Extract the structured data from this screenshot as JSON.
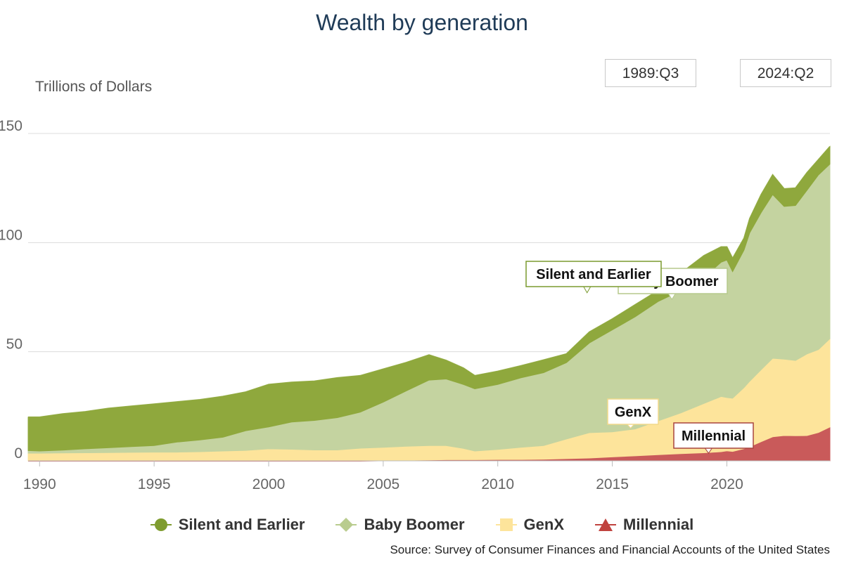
{
  "title": "Wealth by generation",
  "unit_label": "Trillions of Dollars",
  "range_selector": {
    "start": "1989:Q3",
    "end": "2024:Q2"
  },
  "source": "Source: Survey of Consumer Finances and Financial Accounts of the United States",
  "colors": {
    "silent": "#8fa83d",
    "boomer": "#c4d3a0",
    "genx": "#fde49b",
    "millennial": "#c95a5a",
    "silent_label_border": "#7a9a2e",
    "boomer_label_border": "#b6c98c",
    "genx_label_border": "#f2d98a",
    "millennial_label_border": "#a8453f"
  },
  "legend": [
    {
      "label": "Silent and Earlier",
      "icon": "circle-icon",
      "color": "#7f9c2f"
    },
    {
      "label": "Baby Boomer",
      "icon": "diamond-icon",
      "color": "#b9cc8e"
    },
    {
      "label": "GenX",
      "icon": "square-icon",
      "color": "#fde49b"
    },
    {
      "label": "Millennial",
      "icon": "triangle-icon",
      "color": "#c0433f"
    }
  ],
  "chart_data": {
    "type": "area",
    "stacked": true,
    "title": "Wealth by generation",
    "ylabel": "Trillions of Dollars",
    "xlim": [
      1989.5,
      2024.5
    ],
    "ylim": [
      0,
      155
    ],
    "y_ticks": [
      0,
      50,
      100,
      150
    ],
    "x_ticks": [
      1990,
      1995,
      2000,
      2005,
      2010,
      2015,
      2020
    ],
    "grid": "horizontal",
    "legend_position": "bottom",
    "x": [
      1989.5,
      1990,
      1991,
      1992,
      1993,
      1994,
      1995,
      1996,
      1997,
      1998,
      1999,
      2000,
      2001,
      2002,
      2003,
      2004,
      2005,
      2006,
      2007,
      2007.75,
      2008.5,
      2009,
      2010,
      2011,
      2012,
      2013,
      2014,
      2015,
      2016,
      2017,
      2018,
      2019,
      2019.75,
      2020,
      2020.25,
      2020.75,
      2021,
      2021.5,
      2022,
      2022.5,
      2023,
      2023.5,
      2024,
      2024.5
    ],
    "series": [
      {
        "name": "Millennial",
        "values": [
          0,
          0,
          0,
          0,
          0,
          0,
          0,
          0,
          0,
          0,
          0,
          0,
          0,
          0,
          0,
          0,
          0.2,
          0.3,
          0.4,
          0.5,
          0.5,
          0.5,
          0.6,
          0.6,
          0.7,
          1.0,
          1.3,
          1.8,
          2.3,
          2.8,
          3.3,
          3.7,
          4.2,
          4.6,
          4.3,
          5.6,
          6.5,
          8.8,
          11.0,
          11.6,
          11.5,
          11.6,
          13.0,
          15.5
        ]
      },
      {
        "name": "GenX",
        "values": [
          3.5,
          3.5,
          3.6,
          3.7,
          3.8,
          3.9,
          4.0,
          4.0,
          4.2,
          4.5,
          4.8,
          5.5,
          5.3,
          5.0,
          5.0,
          5.8,
          6.0,
          6.4,
          6.6,
          6.5,
          5.2,
          4.0,
          4.6,
          5.6,
          6.3,
          9.0,
          11.6,
          11.5,
          12.3,
          15.5,
          18.7,
          22.6,
          25.3,
          24.4,
          24.4,
          28.0,
          30.0,
          33.0,
          36.0,
          35.0,
          34.5,
          37.4,
          38.0,
          40.5
        ]
      },
      {
        "name": "Baby Boomer",
        "values": [
          1.2,
          1.0,
          1.3,
          1.8,
          2.2,
          2.6,
          3.0,
          4.6,
          5.4,
          6.3,
          9.0,
          10.0,
          12.5,
          13.5,
          14.8,
          16.5,
          20.7,
          25.3,
          30.0,
          30.5,
          29.3,
          28.5,
          29.8,
          31.8,
          33.4,
          35.0,
          41.1,
          46.7,
          51.4,
          54.7,
          56.0,
          57.7,
          61.5,
          63.0,
          58.0,
          63.0,
          68.0,
          72.0,
          75.0,
          70.0,
          71.0,
          75.0,
          80.0,
          80.0
        ]
      },
      {
        "name": "Silent and Earlier",
        "values": [
          15.3,
          15.5,
          16.6,
          17.0,
          18.0,
          18.5,
          19.0,
          18.4,
          18.4,
          18.7,
          17.7,
          19.5,
          18.2,
          18.0,
          18.2,
          16.7,
          15.1,
          13.0,
          11.5,
          8.5,
          7.5,
          6.0,
          6.0,
          5.5,
          5.8,
          4.0,
          5.0,
          5.0,
          5.5,
          5.0,
          8.0,
          10.0,
          7.0,
          6.0,
          6.0,
          5.4,
          6.5,
          8.2,
          9.0,
          8.0,
          8.0,
          8.0,
          7.0,
          8.0
        ]
      }
    ],
    "annotations": [
      {
        "text": "Silent and Earlier",
        "series": "Silent and Earlier",
        "x": 2013.9,
        "y": 77
      },
      {
        "text": "Baby Boomer",
        "series": "Baby Boomer",
        "x": 2017.6,
        "y": 74
      },
      {
        "text": "GenX",
        "series": "GenX",
        "x": 2015.8,
        "y": 15
      },
      {
        "text": "Millennial",
        "series": "Millennial",
        "x": 2019.2,
        "y": 3.5
      }
    ]
  }
}
